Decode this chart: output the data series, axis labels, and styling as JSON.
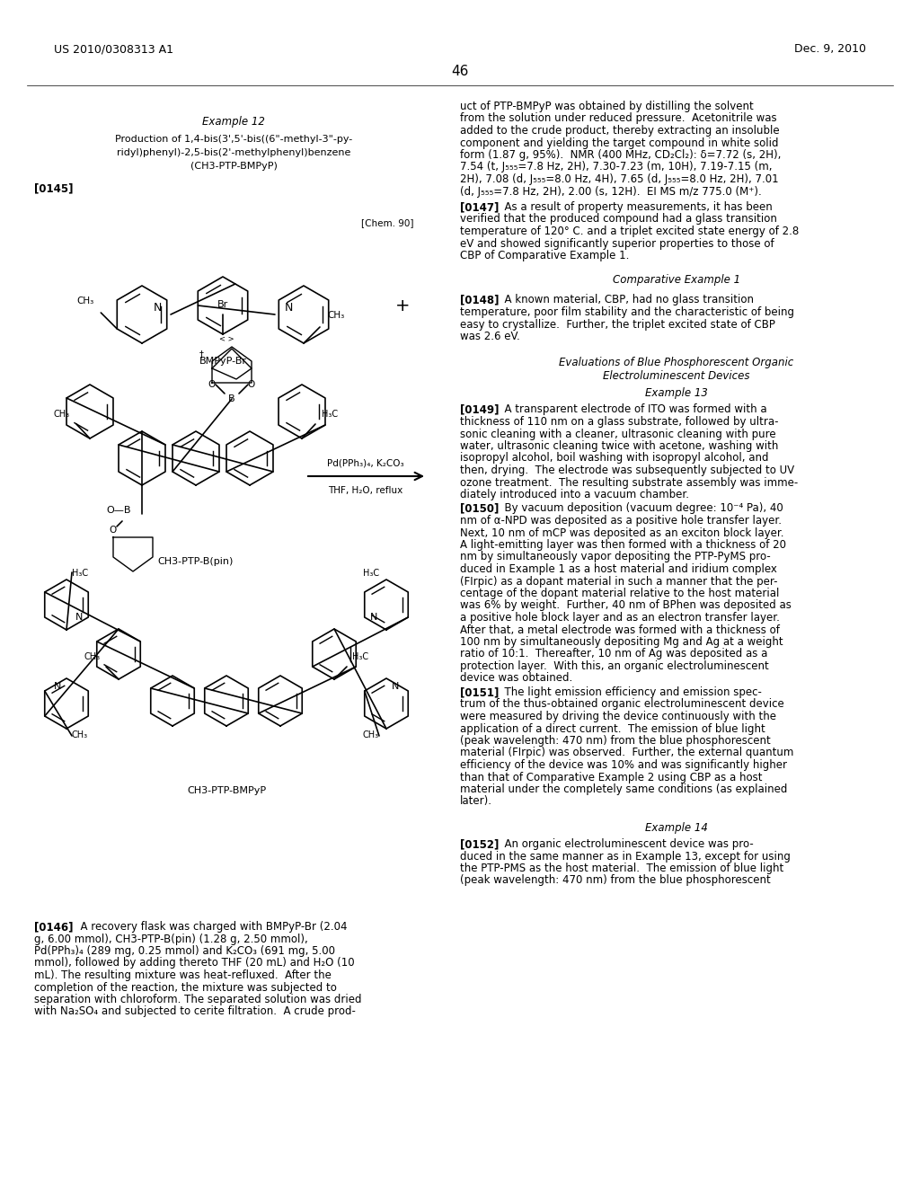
{
  "bg": "#ffffff",
  "header_left": "US 2010/0308313 A1",
  "header_right": "Dec. 9, 2010",
  "page_num": "46",
  "fig_w": 10.24,
  "fig_h": 13.2,
  "dpi": 100
}
